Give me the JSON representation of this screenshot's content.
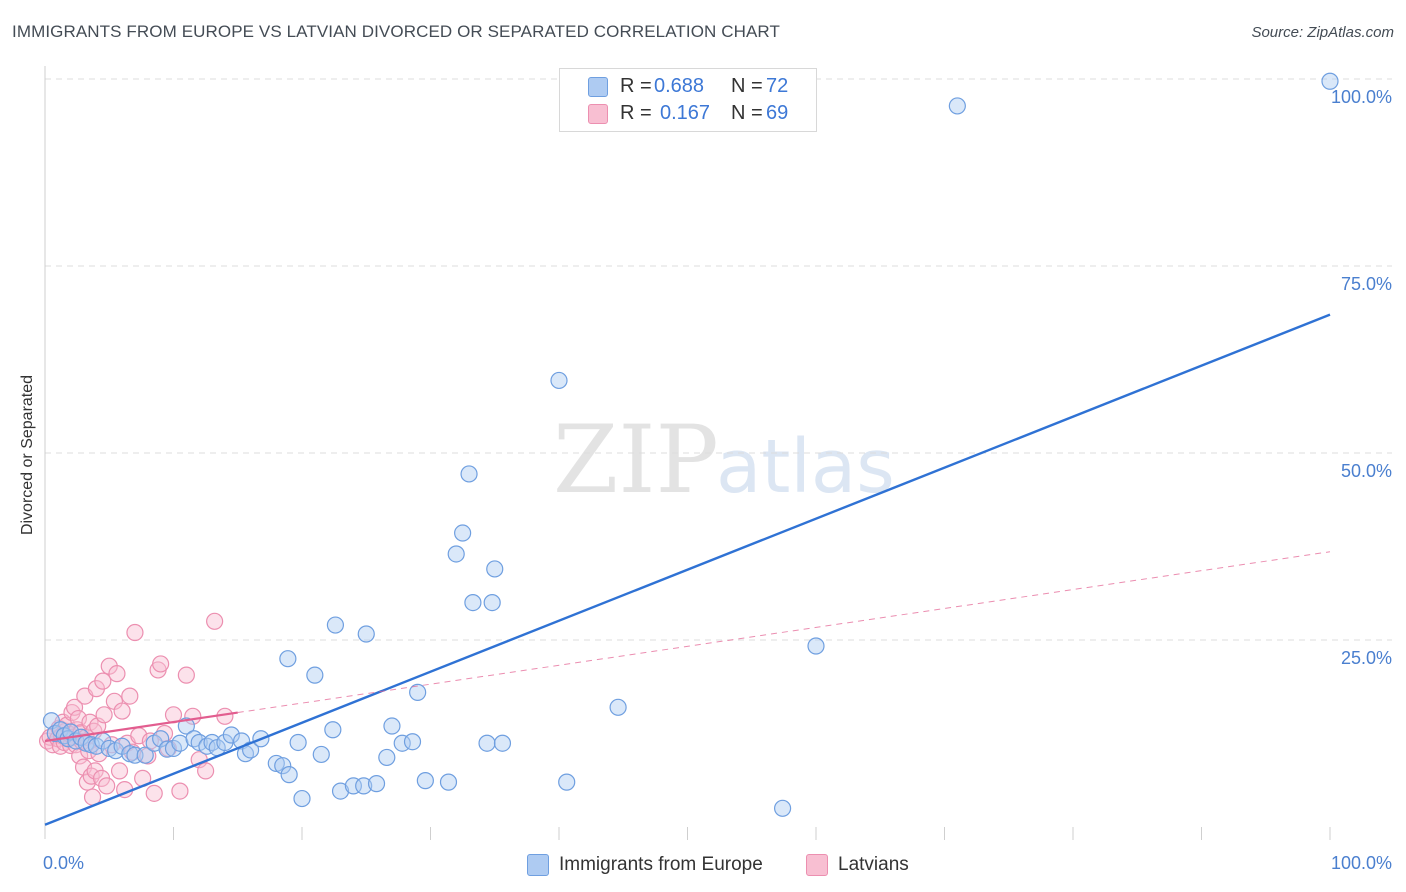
{
  "title": "IMMIGRANTS FROM EUROPE VS LATVIAN DIVORCED OR SEPARATED CORRELATION CHART",
  "source": "Source: ZipAtlas.com",
  "watermark": {
    "zip": "ZIP",
    "atlas": "atlas"
  },
  "legend_stats": {
    "r_label": "R =",
    "n_label": "N =",
    "rows": [
      {
        "r": "0.688",
        "n": "72",
        "swatch_fill": "#aecbf2",
        "swatch_border": "#6f9fe0"
      },
      {
        "r": "0.167",
        "n": "69",
        "swatch_fill": "#f8bfd2",
        "swatch_border": "#ec8fb0"
      }
    ]
  },
  "bottom_legend": [
    {
      "label": "Immigrants from Europe",
      "swatch_fill": "#aecbf2",
      "swatch_border": "#6f9fe0"
    },
    {
      "label": "Latvians",
      "swatch_fill": "#f8bfd2",
      "swatch_border": "#ec8fb0"
    }
  ],
  "chart_data": {
    "type": "scatter",
    "title": "IMMIGRANTS FROM EUROPE VS LATVIAN DIVORCED OR SEPARATED CORRELATION CHART",
    "xlabel": "",
    "ylabel": "Divorced or Separated",
    "xlim": [
      0,
      100
    ],
    "ylim": [
      0,
      100
    ],
    "x_tick_labels": [
      {
        "value": 0,
        "label": "0.0%"
      },
      {
        "value": 100,
        "label": "100.0%"
      }
    ],
    "y_tick_labels": [
      {
        "value": 25,
        "label": "25.0%"
      },
      {
        "value": 50,
        "label": "50.0%"
      },
      {
        "value": 75,
        "label": "75.0%"
      },
      {
        "value": 100,
        "label": "100.0%"
      }
    ],
    "x_minor_ticks": [
      10,
      20,
      30,
      40,
      50,
      60,
      70,
      80,
      90,
      100
    ],
    "grid": true,
    "colors": {
      "blue_fill": "#aecbf2",
      "blue_stroke": "#6f9fe0",
      "blue_line": "#2f72d4",
      "pink_fill": "#f8bfd2",
      "pink_stroke": "#ec8fb0",
      "pink_line": "#e25d8f"
    },
    "series": [
      {
        "name": "Immigrants from Europe",
        "color": "#6f9fe0",
        "trend": {
          "x0": 0,
          "y0": 0.3,
          "x1": 100,
          "y1": 68.5,
          "style": "solid"
        },
        "points": [
          [
            0.5,
            14.2
          ],
          [
            0.8,
            12.5
          ],
          [
            1.2,
            13.0
          ],
          [
            1.5,
            12.2
          ],
          [
            1.8,
            11.8
          ],
          [
            2.0,
            12.7
          ],
          [
            2.4,
            11.5
          ],
          [
            2.8,
            12.0
          ],
          [
            3.2,
            11.2
          ],
          [
            3.6,
            11.0
          ],
          [
            4.0,
            10.8
          ],
          [
            4.5,
            11.5
          ],
          [
            5.0,
            10.5
          ],
          [
            5.5,
            10.2
          ],
          [
            6.0,
            10.8
          ],
          [
            6.6,
            9.8
          ],
          [
            7.0,
            9.6
          ],
          [
            7.8,
            9.6
          ],
          [
            8.5,
            11.2
          ],
          [
            9.0,
            11.8
          ],
          [
            9.5,
            10.4
          ],
          [
            10.0,
            10.5
          ],
          [
            10.5,
            11.2
          ],
          [
            11.0,
            13.5
          ],
          [
            11.6,
            11.8
          ],
          [
            12.0,
            11.3
          ],
          [
            12.6,
            10.8
          ],
          [
            13.0,
            11.3
          ],
          [
            13.4,
            10.6
          ],
          [
            14.0,
            11.3
          ],
          [
            14.5,
            12.3
          ],
          [
            15.3,
            11.5
          ],
          [
            15.6,
            9.8
          ],
          [
            16.0,
            10.3
          ],
          [
            16.8,
            11.8
          ],
          [
            18.0,
            8.5
          ],
          [
            18.5,
            8.2
          ],
          [
            19.0,
            7.0
          ],
          [
            19.7,
            11.3
          ],
          [
            18.9,
            22.5
          ],
          [
            20.0,
            3.8
          ],
          [
            21.0,
            20.3
          ],
          [
            21.5,
            9.7
          ],
          [
            22.4,
            13.0
          ],
          [
            23.0,
            4.8
          ],
          [
            22.6,
            27.0
          ],
          [
            24.0,
            5.5
          ],
          [
            24.8,
            5.5
          ],
          [
            25.0,
            25.8
          ],
          [
            25.8,
            5.8
          ],
          [
            26.6,
            9.3
          ],
          [
            27.0,
            13.5
          ],
          [
            27.8,
            11.2
          ],
          [
            28.6,
            11.4
          ],
          [
            29.0,
            18.0
          ],
          [
            29.6,
            6.2
          ],
          [
            31.4,
            6.0
          ],
          [
            32.0,
            36.5
          ],
          [
            32.5,
            39.3
          ],
          [
            33.0,
            47.2
          ],
          [
            33.3,
            30.0
          ],
          [
            34.8,
            30.0
          ],
          [
            35.0,
            34.5
          ],
          [
            34.4,
            11.2
          ],
          [
            35.6,
            11.2
          ],
          [
            40.6,
            6.0
          ],
          [
            40.0,
            59.7
          ],
          [
            44.6,
            16.0
          ],
          [
            57.4,
            2.5
          ],
          [
            60.0,
            24.2
          ],
          [
            71.0,
            96.4
          ],
          [
            100.0,
            99.7
          ]
        ]
      },
      {
        "name": "Latvians",
        "color": "#ec8fb0",
        "trend": {
          "x0": 0,
          "y0": 11.5,
          "x1": 15,
          "y1": 15.3,
          "x2": 100,
          "y2": 36.8,
          "style": "solid-then-dashed"
        },
        "points": [
          [
            0.2,
            11.5
          ],
          [
            0.4,
            12.0
          ],
          [
            0.6,
            11.0
          ],
          [
            0.8,
            12.5
          ],
          [
            1.0,
            11.8
          ],
          [
            1.1,
            13.2
          ],
          [
            1.2,
            10.8
          ],
          [
            1.3,
            12.2
          ],
          [
            1.4,
            14.0
          ],
          [
            1.5,
            11.3
          ],
          [
            1.6,
            12.8
          ],
          [
            1.7,
            13.6
          ],
          [
            1.8,
            11.9
          ],
          [
            1.9,
            12.4
          ],
          [
            2.0,
            10.9
          ],
          [
            2.1,
            15.3
          ],
          [
            2.2,
            12.0
          ],
          [
            2.3,
            16.0
          ],
          [
            2.4,
            11.0
          ],
          [
            2.5,
            13.0
          ],
          [
            2.6,
            14.5
          ],
          [
            2.7,
            9.5
          ],
          [
            2.8,
            12.6
          ],
          [
            2.9,
            11.4
          ],
          [
            3.0,
            8.0
          ],
          [
            3.1,
            17.5
          ],
          [
            3.2,
            12.0
          ],
          [
            3.3,
            6.0
          ],
          [
            3.4,
            10.2
          ],
          [
            3.5,
            14.0
          ],
          [
            3.6,
            6.8
          ],
          [
            3.7,
            4.0
          ],
          [
            3.8,
            12.8
          ],
          [
            3.9,
            7.5
          ],
          [
            4.0,
            18.5
          ],
          [
            4.1,
            13.5
          ],
          [
            4.2,
            9.8
          ],
          [
            4.4,
            6.5
          ],
          [
            4.5,
            19.5
          ],
          [
            4.6,
            15.0
          ],
          [
            4.8,
            5.5
          ],
          [
            5.0,
            21.5
          ],
          [
            5.2,
            11.0
          ],
          [
            5.4,
            16.8
          ],
          [
            5.6,
            20.5
          ],
          [
            5.8,
            7.5
          ],
          [
            6.0,
            15.5
          ],
          [
            6.2,
            5.0
          ],
          [
            6.4,
            11.2
          ],
          [
            6.6,
            17.5
          ],
          [
            6.8,
            10.0
          ],
          [
            7.0,
            26.0
          ],
          [
            7.3,
            12.2
          ],
          [
            7.6,
            6.5
          ],
          [
            8.0,
            9.5
          ],
          [
            8.2,
            11.5
          ],
          [
            8.5,
            4.5
          ],
          [
            8.8,
            21.0
          ],
          [
            9.0,
            21.8
          ],
          [
            9.3,
            12.5
          ],
          [
            9.6,
            10.5
          ],
          [
            10.0,
            15.0
          ],
          [
            10.5,
            4.8
          ],
          [
            11.0,
            20.3
          ],
          [
            11.5,
            14.8
          ],
          [
            12.0,
            9.0
          ],
          [
            12.5,
            7.5
          ],
          [
            13.2,
            27.5
          ],
          [
            14.0,
            14.8
          ]
        ]
      }
    ]
  }
}
